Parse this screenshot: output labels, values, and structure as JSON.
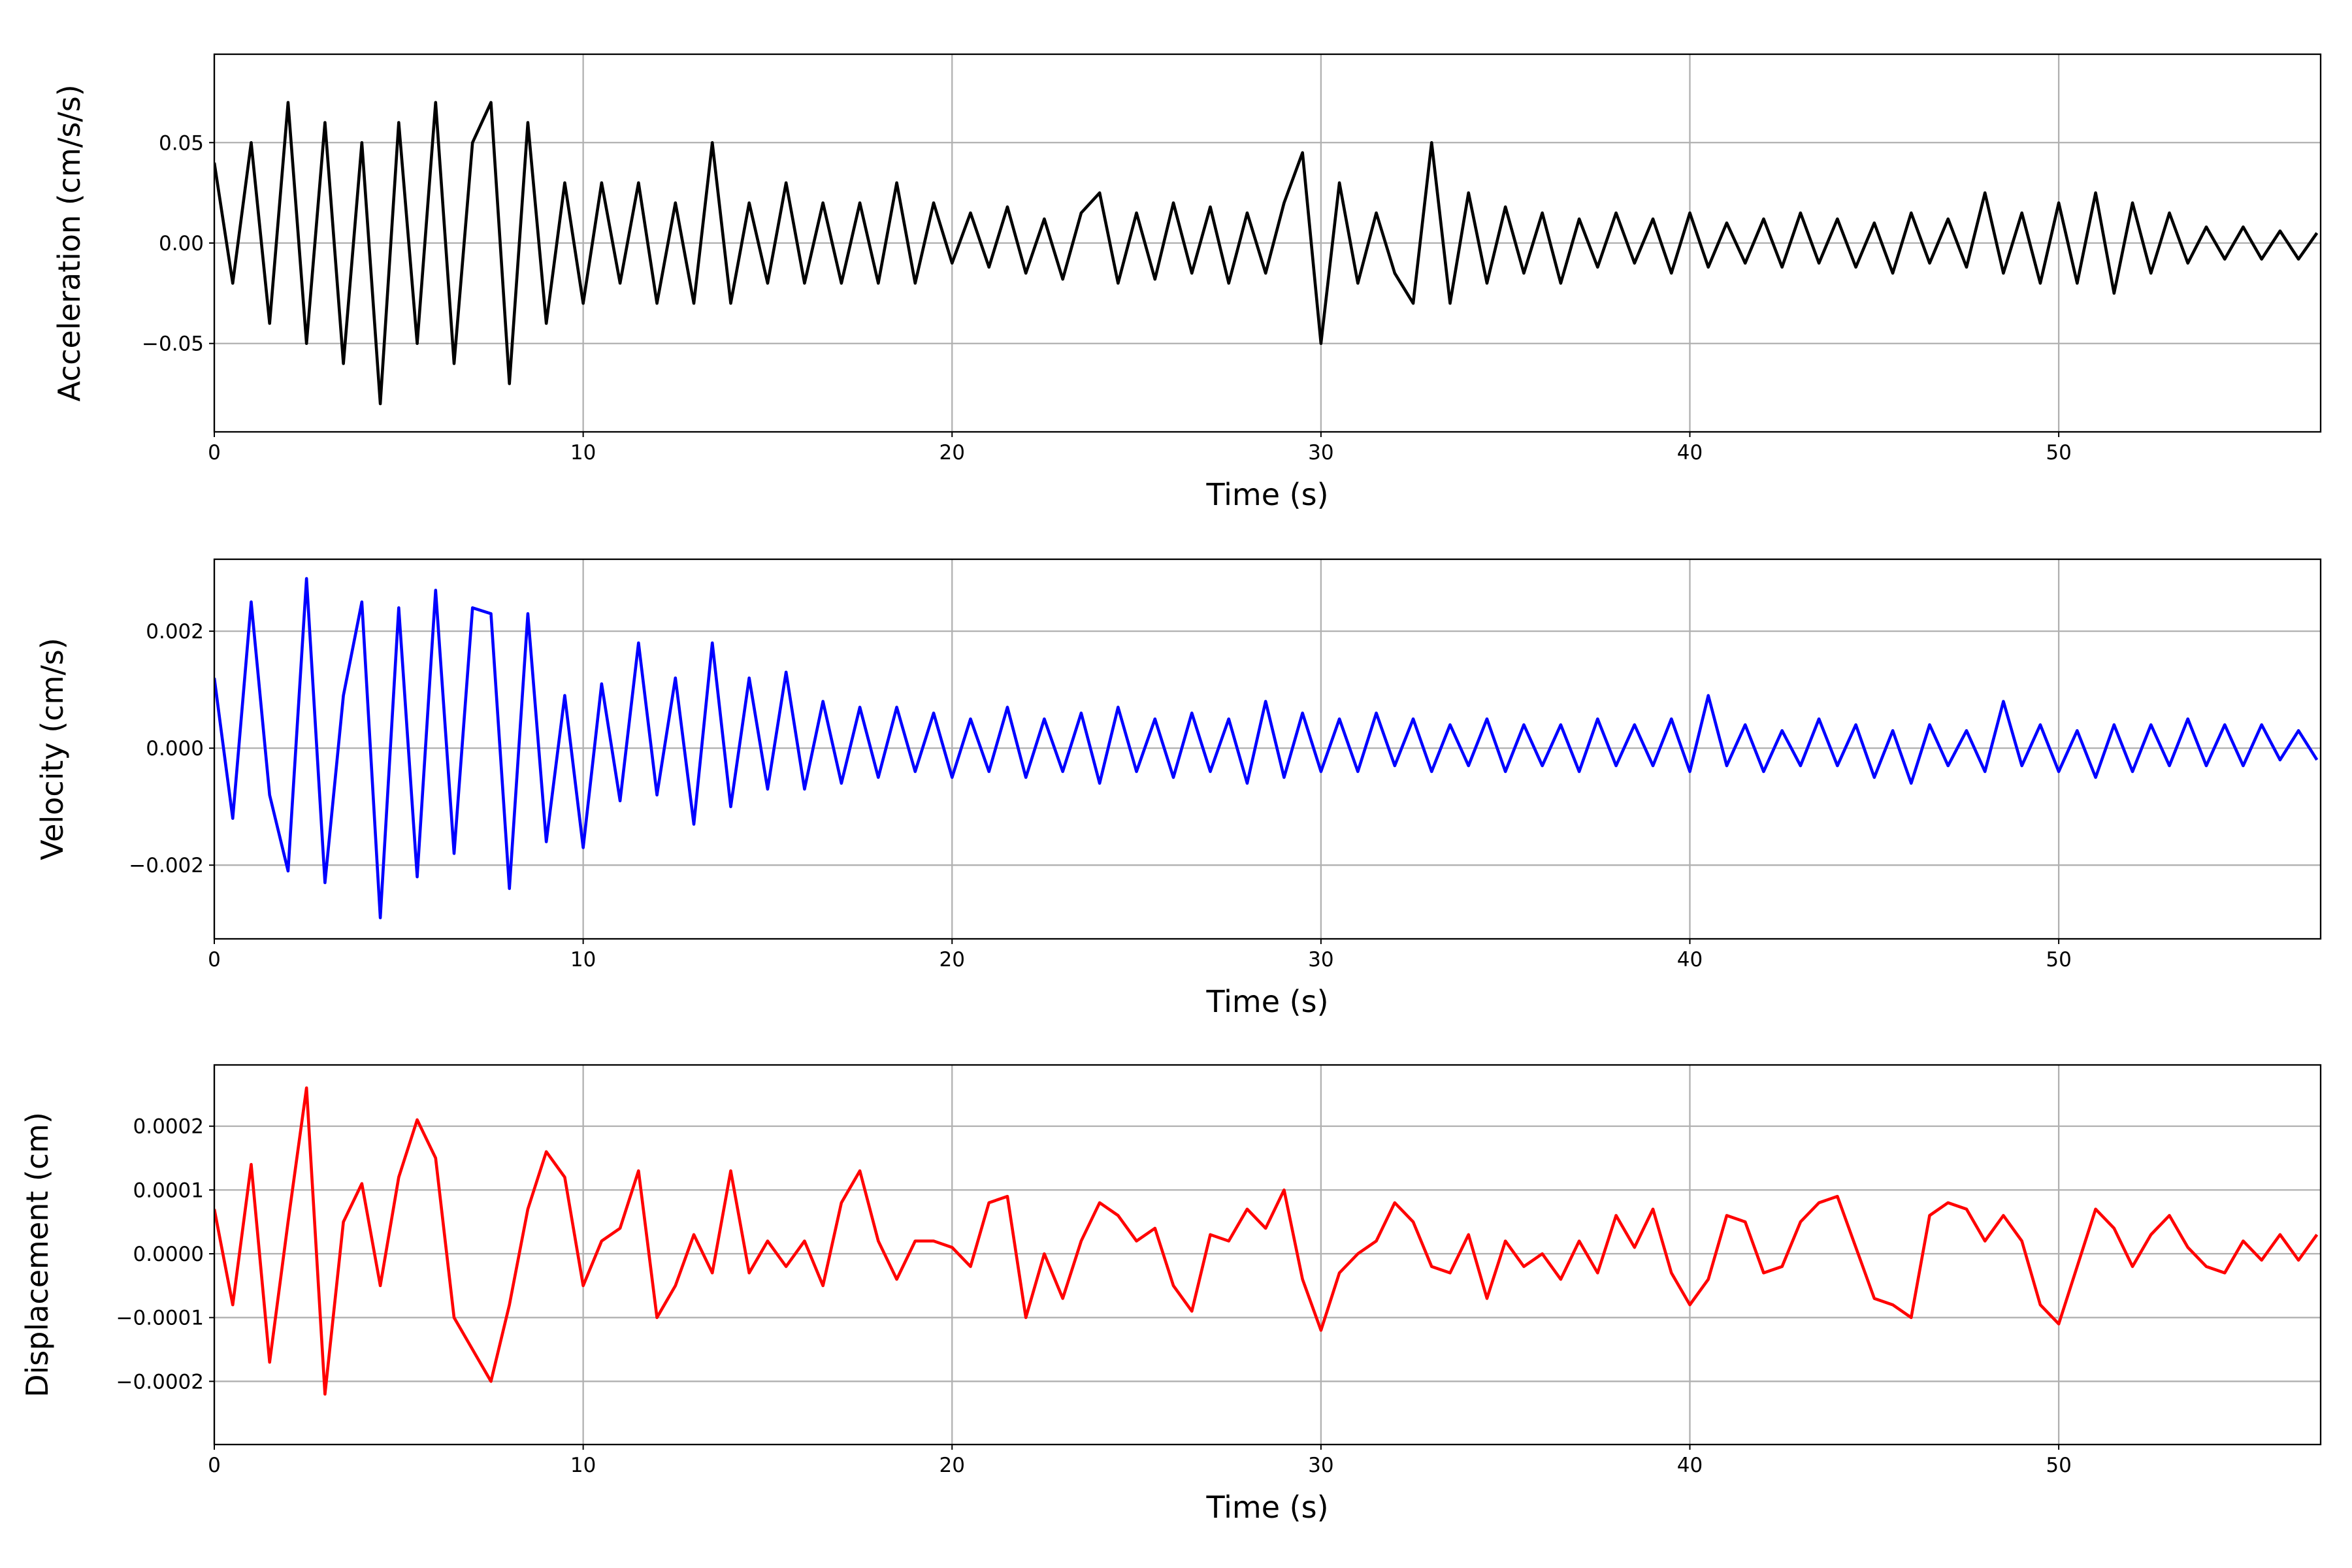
{
  "chart_data": [
    {
      "type": "line",
      "xlabel": "Time (s)",
      "ylabel": "Acceleration (cm/s/s)",
      "grid": true,
      "xlim": [
        0,
        57.1
      ],
      "ylim": [
        -0.094,
        0.094
      ],
      "xticks": [
        0,
        10,
        20,
        30,
        40,
        50
      ],
      "yticks": [
        {
          "value": -0.05,
          "label": "−0.05"
        },
        {
          "value": 0,
          "label": "0.00"
        },
        {
          "value": 0.05,
          "label": "0.05"
        }
      ],
      "x": [
        0,
        0.5,
        1,
        1.5,
        2,
        2.5,
        3,
        3.5,
        4,
        4.5,
        5,
        5.5,
        6,
        6.5,
        7,
        7.5,
        8,
        8.5,
        9,
        9.5,
        10,
        10.5,
        11,
        11.5,
        12,
        12.5,
        13,
        13.5,
        14,
        14.5,
        15,
        15.5,
        16,
        16.5,
        17,
        17.5,
        18,
        18.5,
        19,
        19.5,
        20,
        20.5,
        21,
        21.5,
        22,
        22.5,
        23,
        23.5,
        24,
        24.5,
        25,
        25.5,
        26,
        26.5,
        27,
        27.5,
        28,
        28.5,
        29,
        29.5,
        30,
        30.5,
        31,
        31.5,
        32,
        32.5,
        33,
        33.5,
        34,
        34.5,
        35,
        35.5,
        36,
        36.5,
        37,
        37.5,
        38,
        38.5,
        39,
        39.5,
        40,
        40.5,
        41,
        41.5,
        42,
        42.5,
        43,
        43.5,
        44,
        44.5,
        45,
        45.5,
        46,
        46.5,
        47,
        47.5,
        48,
        48.5,
        49,
        49.5,
        50,
        50.5,
        51,
        51.5,
        52,
        52.5,
        53,
        53.5,
        54,
        54.5,
        55,
        55.5,
        56,
        56.5,
        57
      ],
      "series": [
        {
          "color": "#000000",
          "values": [
            0.04,
            -0.02,
            0.05,
            -0.04,
            0.07,
            -0.05,
            0.06,
            -0.06,
            0.05,
            -0.08,
            0.06,
            -0.05,
            0.07,
            -0.06,
            0.05,
            0.07,
            -0.07,
            0.06,
            -0.04,
            0.03,
            -0.03,
            0.03,
            -0.02,
            0.03,
            -0.03,
            0.02,
            -0.03,
            0.05,
            -0.03,
            0.02,
            -0.02,
            0.03,
            -0.02,
            0.02,
            -0.02,
            0.02,
            -0.02,
            0.03,
            -0.02,
            0.02,
            -0.01,
            0.015,
            -0.012,
            0.018,
            -0.015,
            0.012,
            -0.018,
            0.015,
            0.025,
            -0.02,
            0.015,
            -0.018,
            0.02,
            -0.015,
            0.018,
            -0.02,
            0.015,
            -0.015,
            0.02,
            0.045,
            -0.05,
            0.03,
            -0.02,
            0.015,
            -0.015,
            -0.03,
            0.05,
            -0.03,
            0.025,
            -0.02,
            0.018,
            -0.015,
            0.015,
            -0.02,
            0.012,
            -0.012,
            0.015,
            -0.01,
            0.012,
            -0.015,
            0.015,
            -0.012,
            0.01,
            -0.01,
            0.012,
            -0.012,
            0.015,
            -0.01,
            0.012,
            -0.012,
            0.01,
            -0.015,
            0.015,
            -0.01,
            0.012,
            -0.012,
            0.025,
            -0.015,
            0.015,
            -0.02,
            0.02,
            -0.02,
            0.025,
            -0.025,
            0.02,
            -0.015,
            0.015,
            -0.01,
            0.008,
            -0.008,
            0.008,
            -0.008,
            0.006,
            -0.008,
            0.005
          ]
        }
      ]
    },
    {
      "type": "line",
      "xlabel": "Time (s)",
      "ylabel": "Velocity (cm/s)",
      "grid": true,
      "xlim": [
        0,
        57.1
      ],
      "ylim": [
        -0.00326,
        0.00323
      ],
      "xticks": [
        0,
        10,
        20,
        30,
        40,
        50
      ],
      "yticks": [
        {
          "value": -0.002,
          "label": "−0.002"
        },
        {
          "value": 0,
          "label": "0.000"
        },
        0.002
      ],
      "x": [
        0,
        0.5,
        1,
        1.5,
        2,
        2.5,
        3,
        3.5,
        4,
        4.5,
        5,
        5.5,
        6,
        6.5,
        7,
        7.5,
        8,
        8.5,
        9,
        9.5,
        10,
        10.5,
        11,
        11.5,
        12,
        12.5,
        13,
        13.5,
        14,
        14.5,
        15,
        15.5,
        16,
        16.5,
        17,
        17.5,
        18,
        18.5,
        19,
        19.5,
        20,
        20.5,
        21,
        21.5,
        22,
        22.5,
        23,
        23.5,
        24,
        24.5,
        25,
        25.5,
        26,
        26.5,
        27,
        27.5,
        28,
        28.5,
        29,
        29.5,
        30,
        30.5,
        31,
        31.5,
        32,
        32.5,
        33,
        33.5,
        34,
        34.5,
        35,
        35.5,
        36,
        36.5,
        37,
        37.5,
        38,
        38.5,
        39,
        39.5,
        40,
        40.5,
        41,
        41.5,
        42,
        42.5,
        43,
        43.5,
        44,
        44.5,
        45,
        45.5,
        46,
        46.5,
        47,
        47.5,
        48,
        48.5,
        49,
        49.5,
        50,
        50.5,
        51,
        51.5,
        52,
        52.5,
        53,
        53.5,
        54,
        54.5,
        55,
        55.5,
        56,
        56.5,
        57
      ],
      "series": [
        {
          "color": "#0000ff",
          "values": [
            0.0012,
            -0.0012,
            0.0025,
            -0.0008,
            -0.0021,
            0.0029,
            -0.0023,
            0.0009,
            0.0025,
            -0.0029,
            0.0024,
            -0.0022,
            0.0027,
            -0.0018,
            0.0024,
            0.0023,
            -0.0024,
            0.0023,
            -0.0016,
            0.0009,
            -0.0017,
            0.0011,
            -0.0009,
            0.0018,
            -0.0008,
            0.0012,
            -0.0013,
            0.0018,
            -0.001,
            0.0012,
            -0.0007,
            0.0013,
            -0.0007,
            0.0008,
            -0.0006,
            0.0007,
            -0.0005,
            0.0007,
            -0.0004,
            0.0006,
            -0.0005,
            0.0005,
            -0.0004,
            0.0007,
            -0.0005,
            0.0005,
            -0.0004,
            0.0006,
            -0.0006,
            0.0007,
            -0.0004,
            0.0005,
            -0.0005,
            0.0006,
            -0.0004,
            0.0005,
            -0.0006,
            0.0008,
            -0.0005,
            0.0006,
            -0.0004,
            0.0005,
            -0.0004,
            0.0006,
            -0.0003,
            0.0005,
            -0.0004,
            0.0004,
            -0.0003,
            0.0005,
            -0.0004,
            0.0004,
            -0.0003,
            0.0004,
            -0.0004,
            0.0005,
            -0.0003,
            0.0004,
            -0.0003,
            0.0005,
            -0.0004,
            0.0009,
            -0.0003,
            0.0004,
            -0.0004,
            0.0003,
            -0.0003,
            0.0005,
            -0.0003,
            0.0004,
            -0.0005,
            0.0003,
            -0.0006,
            0.0004,
            -0.0003,
            0.0003,
            -0.0004,
            0.0008,
            -0.0003,
            0.0004,
            -0.0004,
            0.0003,
            -0.0005,
            0.0004,
            -0.0004,
            0.0004,
            -0.0003,
            0.0005,
            -0.0003,
            0.0004,
            -0.0003,
            0.0004,
            -0.0002,
            0.0003,
            -0.0002
          ]
        }
      ]
    },
    {
      "type": "line",
      "xlabel": "Time (s)",
      "ylabel": "Displacement (cm)",
      "grid": true,
      "xlim": [
        0,
        57.1
      ],
      "ylim": [
        -0.000299,
        0.000296
      ],
      "xticks": [
        0,
        10,
        20,
        30,
        40,
        50
      ],
      "yticks": [
        {
          "value": -0.0002,
          "label": "−0.0002"
        },
        {
          "value": -0.0001,
          "label": "−0.0001"
        },
        {
          "value": 0,
          "label": "0.0000"
        },
        0.0001,
        0.0002
      ],
      "x": [
        0,
        0.5,
        1,
        1.5,
        2,
        2.5,
        3,
        3.5,
        4,
        4.5,
        5,
        5.5,
        6,
        6.5,
        7,
        7.5,
        8,
        8.5,
        9,
        9.5,
        10,
        10.5,
        11,
        11.5,
        12,
        12.5,
        13,
        13.5,
        14,
        14.5,
        15,
        15.5,
        16,
        16.5,
        17,
        17.5,
        18,
        18.5,
        19,
        19.5,
        20,
        20.5,
        21,
        21.5,
        22,
        22.5,
        23,
        23.5,
        24,
        24.5,
        25,
        25.5,
        26,
        26.5,
        27,
        27.5,
        28,
        28.5,
        29,
        29.5,
        30,
        30.5,
        31,
        31.5,
        32,
        32.5,
        33,
        33.5,
        34,
        34.5,
        35,
        35.5,
        36,
        36.5,
        37,
        37.5,
        38,
        38.5,
        39,
        39.5,
        40,
        40.5,
        41,
        41.5,
        42,
        42.5,
        43,
        43.5,
        44,
        44.5,
        45,
        45.5,
        46,
        46.5,
        47,
        47.5,
        48,
        48.5,
        49,
        49.5,
        50,
        50.5,
        51,
        51.5,
        52,
        52.5,
        53,
        53.5,
        54,
        54.5,
        55,
        55.5,
        56,
        56.5,
        57
      ],
      "series": [
        {
          "color": "#ff0000",
          "values": [
            7e-05,
            -8e-05,
            0.00014,
            -0.00017,
            5e-05,
            0.00026,
            -0.00022,
            5e-05,
            0.00011,
            -5e-05,
            0.00012,
            0.00021,
            0.00015,
            -0.0001,
            -0.00015,
            -0.0002,
            -8e-05,
            7e-05,
            0.00016,
            0.00012,
            -5e-05,
            2e-05,
            4e-05,
            0.00013,
            -0.0001,
            -5e-05,
            3e-05,
            -3e-05,
            0.00013,
            -3e-05,
            2e-05,
            -2e-05,
            2e-05,
            -5e-05,
            8e-05,
            0.00013,
            2e-05,
            -4e-05,
            2e-05,
            2e-05,
            1e-05,
            -2e-05,
            8e-05,
            9e-05,
            -0.0001,
            0,
            -7e-05,
            2e-05,
            8e-05,
            6e-05,
            2e-05,
            4e-05,
            -5e-05,
            -9e-05,
            3e-05,
            2e-05,
            7e-05,
            4e-05,
            0.0001,
            -4e-05,
            -0.00012,
            -3e-05,
            0,
            2e-05,
            8e-05,
            5e-05,
            -2e-05,
            -3e-05,
            3e-05,
            -7e-05,
            2e-05,
            -2e-05,
            0,
            -4e-05,
            2e-05,
            -3e-05,
            6e-05,
            1e-05,
            7e-05,
            -3e-05,
            -8e-05,
            -4e-05,
            6e-05,
            5e-05,
            -3e-05,
            -2e-05,
            5e-05,
            8e-05,
            9e-05,
            1e-05,
            -7e-05,
            -8e-05,
            -0.0001,
            6e-05,
            8e-05,
            7e-05,
            2e-05,
            6e-05,
            2e-05,
            -8e-05,
            -0.00011,
            -2e-05,
            7e-05,
            4e-05,
            -2e-05,
            3e-05,
            6e-05,
            1e-05,
            -2e-05,
            -3e-05,
            2e-05,
            -1e-05,
            3e-05,
            -1e-05,
            3e-05
          ]
        }
      ]
    }
  ]
}
